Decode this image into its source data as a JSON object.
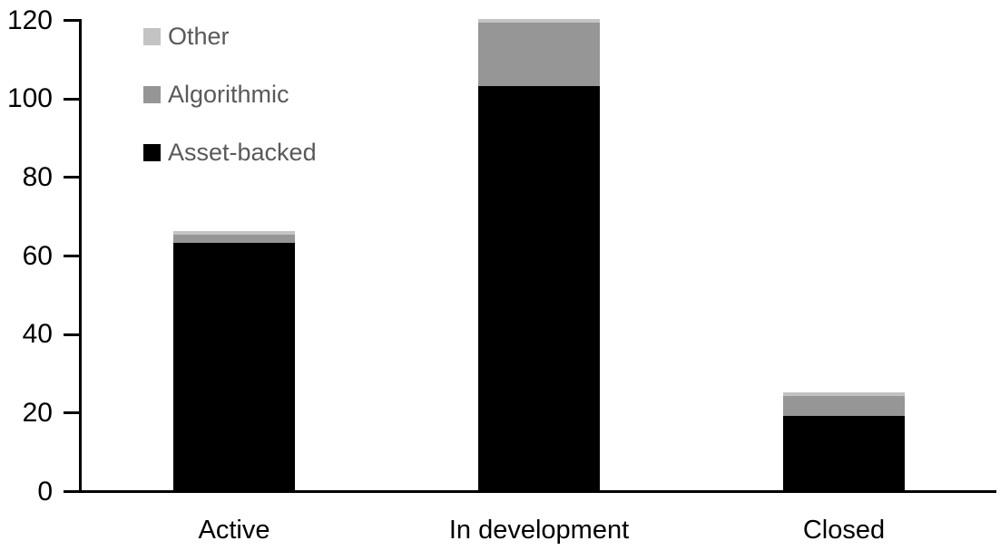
{
  "chart_data": {
    "type": "bar",
    "stacked": true,
    "categories": [
      "Active",
      "In development",
      "Closed"
    ],
    "series": [
      {
        "name": "Asset-backed",
        "color": "#000000",
        "values": [
          63,
          103,
          19
        ]
      },
      {
        "name": "Algorithmic",
        "color": "#969696",
        "values": [
          2,
          16,
          5
        ]
      },
      {
        "name": "Other",
        "color": "#c3c3c3",
        "values": [
          1,
          1,
          1
        ]
      }
    ],
    "totals": [
      66,
      120,
      25
    ],
    "legend_order": [
      "Other",
      "Algorithmic",
      "Asset-backed"
    ],
    "legend_position": "top-left",
    "legend_text_color": "#595959",
    "axis_color": "#000000",
    "tick_label_color": "#000000",
    "category_label_color": "#000000",
    "background_color": "#ffffff",
    "ylim": [
      0,
      120
    ],
    "ytick_step": 20,
    "ytick_labels": [
      "0",
      "20",
      "40",
      "60",
      "80",
      "100",
      "120"
    ],
    "grid": false,
    "xlabel": "",
    "ylabel": ""
  }
}
